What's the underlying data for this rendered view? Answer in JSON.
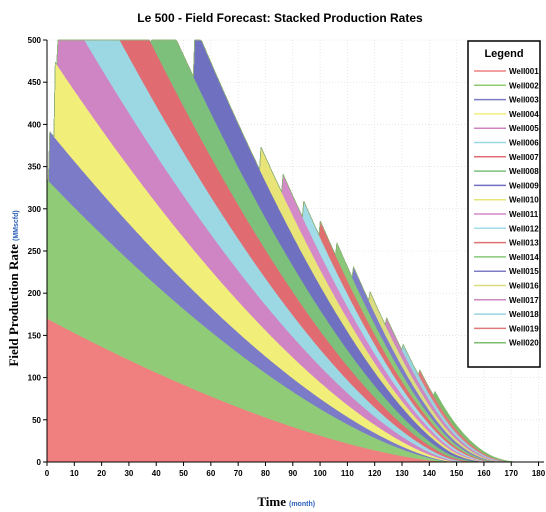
{
  "chart_data": {
    "type": "area",
    "stacked": true,
    "title": "Le 500 - Field Forecast: Stacked Production Rates",
    "xlabel": "Time",
    "xlabel_unit": "(month)",
    "ylabel": "Field Production Rate",
    "ylabel_unit": "(MMscfd)",
    "xlim": [
      0,
      182
    ],
    "ylim": [
      0,
      500
    ],
    "x_ticks": [
      0,
      10,
      20,
      30,
      40,
      50,
      60,
      70,
      80,
      90,
      100,
      110,
      120,
      130,
      140,
      150,
      160,
      170,
      180
    ],
    "y_ticks": [
      0,
      50,
      100,
      150,
      200,
      250,
      300,
      350,
      400,
      450,
      500
    ],
    "grid": true,
    "legend": {
      "title": "Legend",
      "position": "top-right"
    },
    "series": [
      {
        "name": "Well001",
        "color": "#f08080",
        "start": 0,
        "initial": 170,
        "end": 148
      },
      {
        "name": "Well002",
        "color": "#90cc78",
        "start": 0,
        "initial": 165,
        "end": 150
      },
      {
        "name": "Well003",
        "color": "#7b7bc8",
        "start": 1,
        "initial": 60,
        "end": 152
      },
      {
        "name": "Well004",
        "color": "#f2ee7a",
        "start": 3,
        "initial": 90,
        "end": 154
      },
      {
        "name": "Well005",
        "color": "#cf85c4",
        "start": 4,
        "initial": 85,
        "end": 156
      },
      {
        "name": "Well006",
        "color": "#9cd8e4",
        "start": 13,
        "initial": 80,
        "end": 158
      },
      {
        "name": "Well007",
        "color": "#e06c72",
        "start": 24,
        "initial": 75,
        "end": 160
      },
      {
        "name": "Well008",
        "color": "#7cc07c",
        "start": 38,
        "initial": 70,
        "end": 162
      },
      {
        "name": "Well009",
        "color": "#7070c0",
        "start": 54,
        "initial": 65,
        "end": 163
      },
      {
        "name": "Well010",
        "color": "#e8e478",
        "start": 78,
        "initial": 30,
        "end": 164
      },
      {
        "name": "Well011",
        "color": "#d48ac8",
        "start": 86,
        "initial": 25,
        "end": 165
      },
      {
        "name": "Well012",
        "color": "#a2dce8",
        "start": 94,
        "initial": 22,
        "end": 166
      },
      {
        "name": "Well013",
        "color": "#e07070",
        "start": 100,
        "initial": 20,
        "end": 167
      },
      {
        "name": "Well014",
        "color": "#88c878",
        "start": 106,
        "initial": 18,
        "end": 168
      },
      {
        "name": "Well015",
        "color": "#7c7cc8",
        "start": 112,
        "initial": 16,
        "end": 169
      },
      {
        "name": "Well016",
        "color": "#dcdc80",
        "start": 118,
        "initial": 14,
        "end": 170
      },
      {
        "name": "Well017",
        "color": "#cc88c0",
        "start": 124,
        "initial": 12,
        "end": 171
      },
      {
        "name": "Well018",
        "color": "#98d4e0",
        "start": 130,
        "initial": 10,
        "end": 172
      },
      {
        "name": "Well019",
        "color": "#e07a7a",
        "start": 136,
        "initial": 9,
        "end": 173
      },
      {
        "name": "Well020",
        "color": "#7cbc6c",
        "start": 142,
        "initial": 8,
        "end": 174
      }
    ]
  }
}
